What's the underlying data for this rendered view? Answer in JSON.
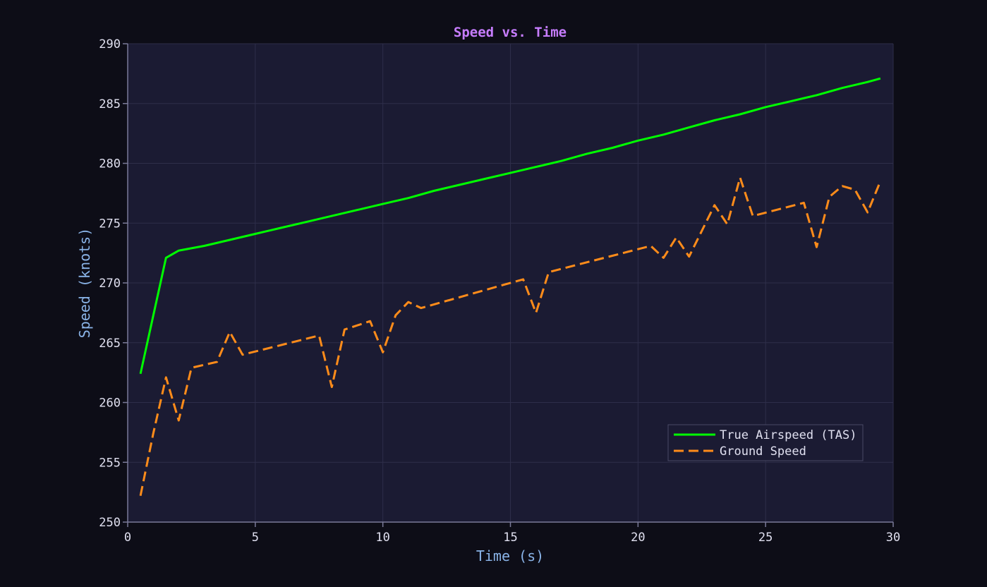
{
  "chart_data": {
    "type": "line",
    "title": "Speed vs. Time",
    "xlabel": "Time (s)",
    "ylabel": "Speed (knots)",
    "xlim": [
      0,
      30
    ],
    "ylim": [
      250,
      290
    ],
    "xticks": [
      0,
      5,
      10,
      15,
      20,
      25,
      30
    ],
    "yticks": [
      250,
      255,
      260,
      265,
      270,
      275,
      280,
      285,
      290
    ],
    "grid": true,
    "legend_position": "lower-right",
    "series": [
      {
        "name": "True Airspeed (TAS)",
        "color": "#00ff00",
        "style": "solid",
        "x": [
          0.5,
          1.5,
          2.0,
          3.0,
          4.0,
          5.0,
          6.0,
          7.0,
          8.0,
          9.0,
          10.0,
          11.0,
          12.0,
          13.0,
          14.0,
          15.0,
          16.0,
          17.0,
          18.0,
          19.0,
          20.0,
          21.0,
          22.0,
          23.0,
          24.0,
          25.0,
          26.0,
          27.0,
          28.0,
          29.0,
          29.5
        ],
        "y": [
          262.4,
          272.1,
          272.7,
          273.1,
          273.6,
          274.1,
          274.6,
          275.1,
          275.6,
          276.1,
          276.6,
          277.1,
          277.7,
          278.2,
          278.7,
          279.2,
          279.7,
          280.2,
          280.8,
          281.3,
          281.9,
          282.4,
          283.0,
          283.6,
          284.1,
          284.7,
          285.2,
          285.7,
          286.3,
          286.8,
          287.1
        ]
      },
      {
        "name": "Ground Speed",
        "color": "#ff8c1a",
        "style": "dashed",
        "x": [
          0.5,
          1.0,
          1.5,
          2.0,
          2.5,
          3.5,
          4.0,
          4.5,
          7.5,
          8.0,
          8.5,
          9.5,
          10.0,
          10.5,
          11.0,
          11.5,
          15.5,
          16.0,
          16.5,
          20.5,
          21.0,
          21.5,
          22.0,
          23.0,
          23.5,
          24.0,
          24.5,
          26.5,
          27.0,
          27.5,
          28.0,
          28.5,
          29.0,
          29.5
        ],
        "y": [
          252.2,
          257.4,
          262.1,
          258.5,
          262.9,
          263.4,
          265.9,
          264.0,
          265.6,
          261.3,
          266.1,
          266.8,
          264.2,
          267.3,
          268.4,
          267.9,
          270.3,
          267.5,
          270.9,
          273.1,
          272.1,
          273.8,
          272.2,
          276.5,
          274.9,
          278.8,
          275.6,
          276.7,
          273.0,
          277.2,
          278.1,
          277.8,
          275.9,
          278.5
        ]
      }
    ]
  },
  "colors": {
    "background": "#0d0d17",
    "plot_background": "#1b1b33",
    "grid": "#2e2e4a",
    "axis": "#7a7a99",
    "tick_text": "#e0e0f0",
    "axis_title": "#8ab4e8",
    "title": "#c77dff"
  }
}
